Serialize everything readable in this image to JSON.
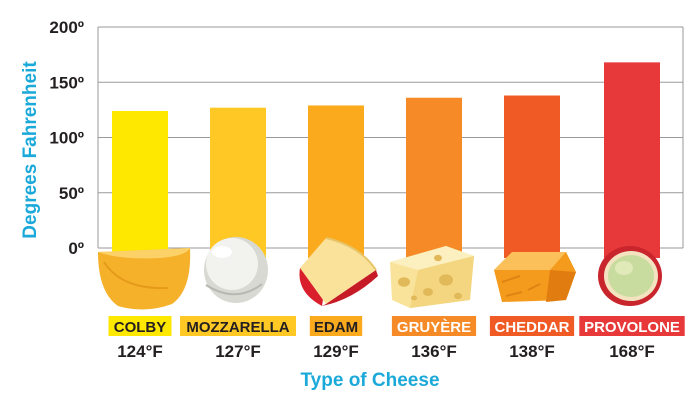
{
  "chart_data": {
    "type": "bar",
    "categories": [
      "COLBY",
      "MOZZARELLA",
      "EDAM",
      "GRUYÈRE",
      "CHEDDAR",
      "PROVOLONE"
    ],
    "values": [
      124,
      127,
      129,
      136,
      138,
      168
    ],
    "value_labels": [
      "124°F",
      "127°F",
      "129°F",
      "136°F",
      "138°F",
      "168°F"
    ],
    "bar_colors": [
      "#ffe800",
      "#ffc824",
      "#fbaa1e",
      "#f58a27",
      "#f05a24",
      "#e8393a"
    ],
    "label_text_colors": [
      "#231f20",
      "#231f20",
      "#231f20",
      "#ffffff",
      "#ffffff",
      "#ffffff"
    ],
    "title": "",
    "xlabel": "Type of Cheese",
    "ylabel": "Degrees Fahrenheit",
    "yticks": [
      "0º",
      "50º",
      "100º",
      "150º",
      "200º"
    ],
    "ytick_values": [
      0,
      50,
      100,
      150,
      200
    ],
    "ylim": [
      0,
      200
    ],
    "grid": true,
    "legend": "none",
    "cheese_icons": [
      "colby-wheel-icon",
      "mozzarella-ball-icon",
      "edam-wedge-icon",
      "gruyere-wedge-icon",
      "cheddar-chunk-icon",
      "provolone-slice-icon"
    ]
  }
}
